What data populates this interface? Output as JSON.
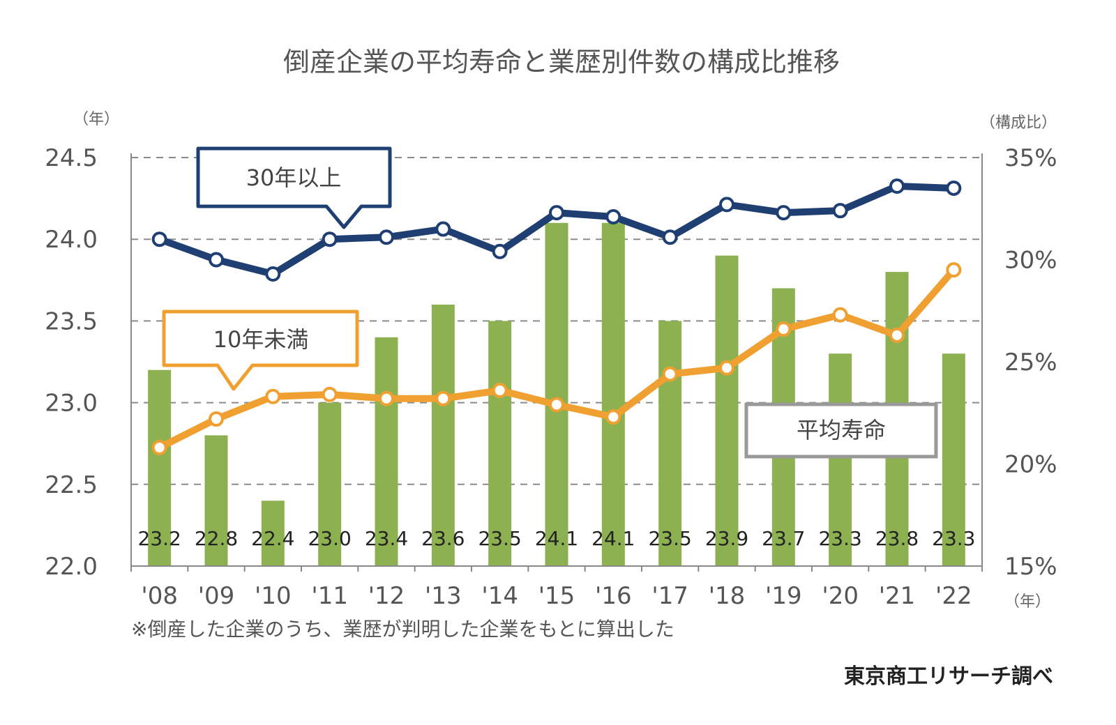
{
  "chart_data": {
    "type": "bar",
    "title": "倒産企業の平均寿命と業歴別件数の構成比推移",
    "left_axis_unit": "（年）",
    "right_axis_unit": "（構成比）",
    "x_axis_unit": "（年）",
    "categories": [
      "'08",
      "'09",
      "'10",
      "'11",
      "'12",
      "'13",
      "'14",
      "'15",
      "'16",
      "'17",
      "'18",
      "'19",
      "'20",
      "'21",
      "'22"
    ],
    "left_ylim": [
      22.0,
      24.5
    ],
    "left_ticks": [
      "24.5",
      "24.0",
      "23.5",
      "23.0",
      "22.5",
      "22.0"
    ],
    "left_tick_values": [
      24.5,
      24.0,
      23.5,
      23.0,
      22.5,
      22.0
    ],
    "right_ylim": [
      15,
      35
    ],
    "right_ticks": [
      "35%",
      "30%",
      "25%",
      "20%",
      "15%"
    ],
    "right_tick_values": [
      35,
      30,
      25,
      20,
      15
    ],
    "grid": "horizontal-dashed",
    "series": [
      {
        "name": "平均寿命",
        "kind": "bar",
        "axis": "left",
        "color": "#8db050",
        "values": [
          23.2,
          22.8,
          22.4,
          23.0,
          23.4,
          23.6,
          23.5,
          24.1,
          24.1,
          23.5,
          23.9,
          23.7,
          23.3,
          23.8,
          23.3
        ],
        "labels": [
          "23.2",
          "22.8",
          "22.4",
          "23.0",
          "23.4",
          "23.6",
          "23.5",
          "24.1",
          "24.1",
          "23.5",
          "23.9",
          "23.7",
          "23.3",
          "23.8",
          "23.3"
        ]
      },
      {
        "name": "30年以上",
        "kind": "line",
        "axis": "right",
        "color": "#1f3f73",
        "values": [
          31.0,
          30.0,
          29.3,
          31.0,
          31.1,
          31.5,
          30.4,
          32.3,
          32.1,
          31.1,
          32.7,
          32.3,
          32.4,
          33.6,
          33.5
        ]
      },
      {
        "name": "10年未満",
        "kind": "line",
        "axis": "right",
        "color": "#f0a030",
        "values": [
          20.8,
          22.2,
          23.3,
          23.4,
          23.2,
          23.2,
          23.6,
          22.9,
          22.3,
          24.4,
          24.7,
          26.6,
          27.3,
          26.3,
          29.5
        ]
      }
    ],
    "callouts": [
      {
        "text": "30年以上",
        "series": "30年以上",
        "border_color": "#1f3f73"
      },
      {
        "text": "10年未満",
        "series": "10年未満",
        "border_color": "#f0a030"
      },
      {
        "text": "平均寿命",
        "series": "平均寿命",
        "border_color": "#999999"
      }
    ],
    "footnote": "※倒産した企業のうち、業歴が判明した企業をもとに算出した",
    "source": "東京商工リサーチ調べ"
  }
}
